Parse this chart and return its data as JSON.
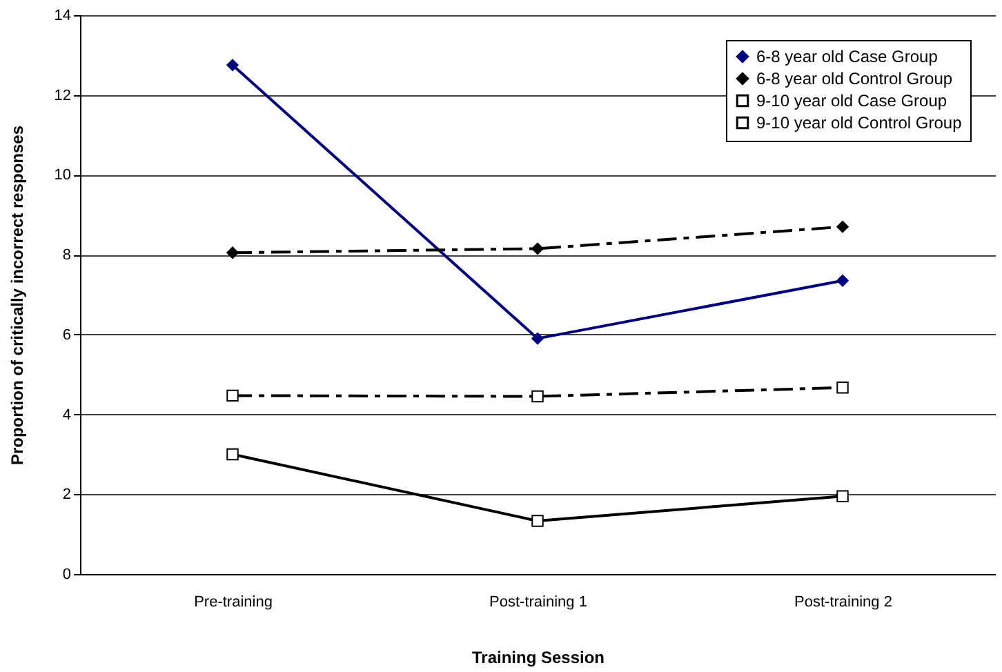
{
  "chart_data": {
    "type": "line",
    "xlabel": "Training Session",
    "ylabel": "Proportion of critically incorrect responses",
    "categories": [
      "Pre-training",
      "Post-training 1",
      "Post-training 2"
    ],
    "series": [
      {
        "name": "6-8 year old Case Group",
        "color": "#000080",
        "values": [
          12.75,
          5.9,
          7.35
        ],
        "marker": "diamond",
        "line_style": "solid"
      },
      {
        "name": "6-8 year old Control Group",
        "color": "#000000",
        "values": [
          8.05,
          8.15,
          8.7
        ],
        "marker": "diamond",
        "line_style": "dashed"
      },
      {
        "name": "9-10 year old Case Group",
        "color": "#000000",
        "values": [
          3.0,
          1.33,
          1.95
        ],
        "marker": "square",
        "line_style": "solid"
      },
      {
        "name": "9-10 year old Control Group",
        "color": "#000000",
        "values": [
          4.47,
          4.45,
          4.67
        ],
        "marker": "square",
        "line_style": "dashed"
      }
    ],
    "ylim": [
      0,
      14
    ],
    "yticks": [
      0,
      2,
      4,
      6,
      8,
      10,
      12,
      14
    ],
    "grid": "y",
    "legend": "top right"
  }
}
